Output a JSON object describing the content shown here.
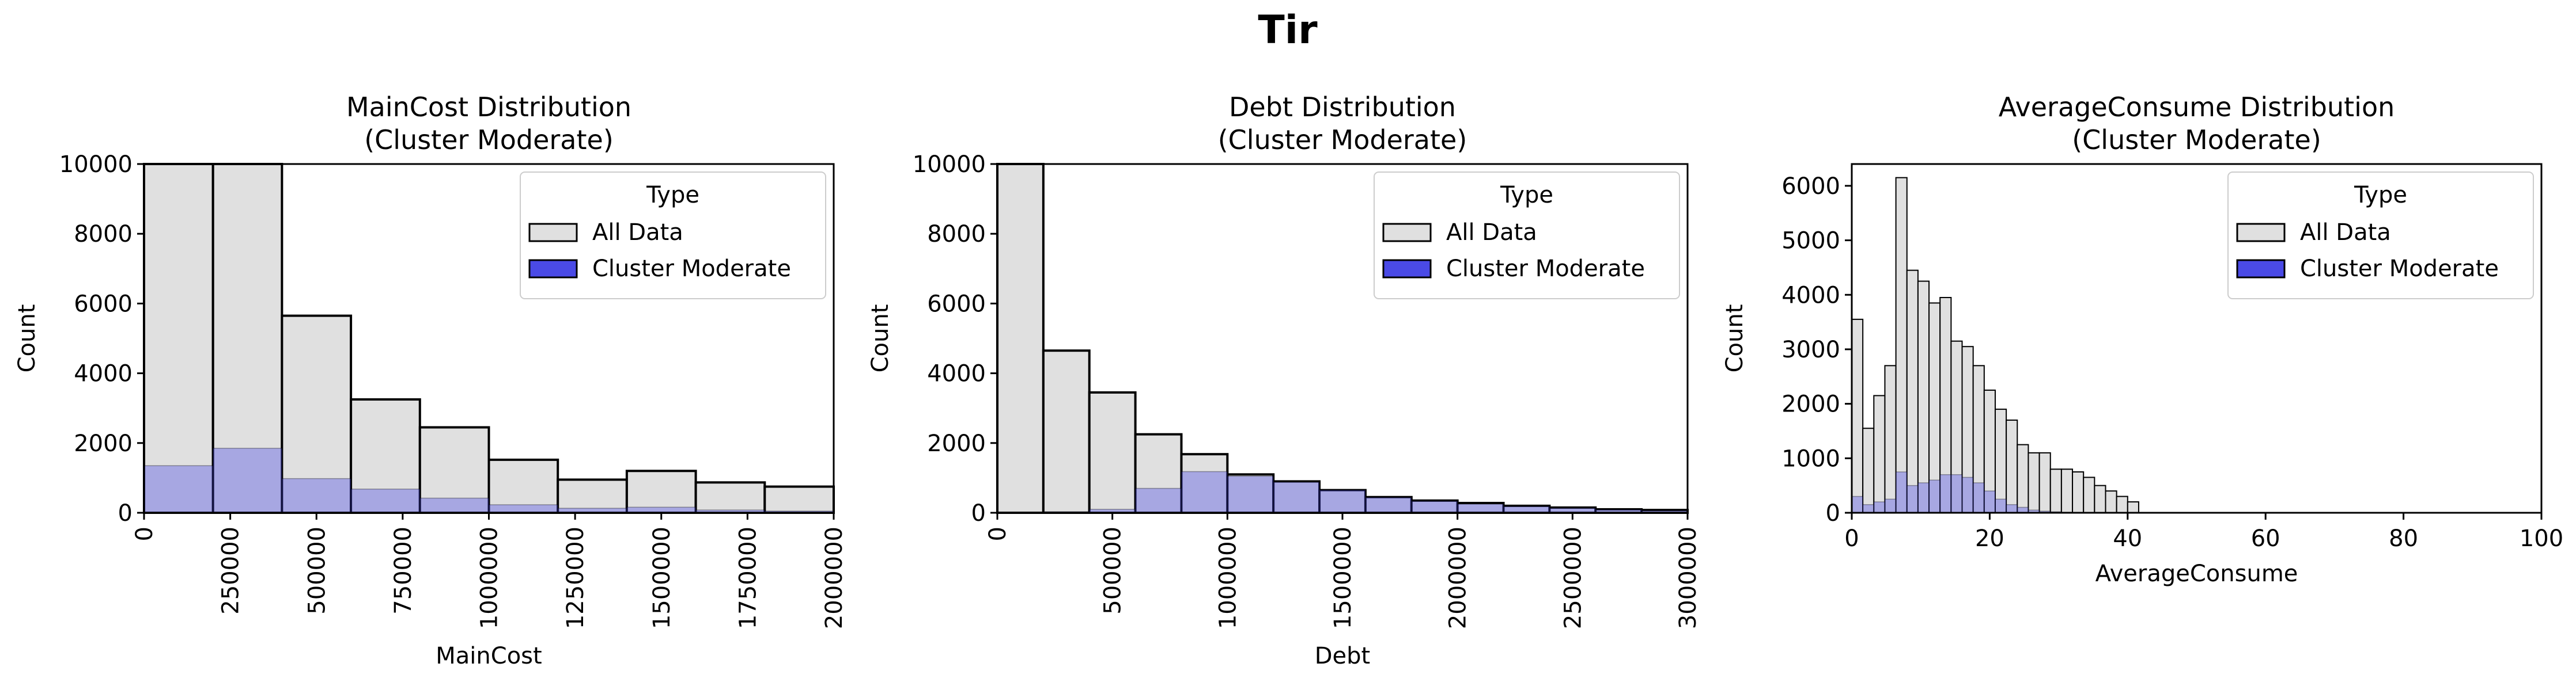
{
  "figure": {
    "suptitle": "Tir"
  },
  "legend": {
    "title": "Type",
    "all_label": "All Data",
    "cluster_label": "Cluster Moderate",
    "all_color": "#e0e0e0",
    "cluster_color": "#4a4ae6"
  },
  "chart_data": [
    {
      "type": "bar",
      "title_line1": "MainCost Distribution",
      "title_line2": "(Cluster Moderate)",
      "xlabel": "MainCost",
      "ylabel": "Count",
      "xlim": [
        0,
        2000000
      ],
      "ylim": [
        0,
        10000
      ],
      "xticks": [
        0,
        250000,
        500000,
        750000,
        1000000,
        1250000,
        1500000,
        1750000,
        2000000
      ],
      "xtick_labels": [
        "0",
        "250000",
        "500000",
        "750000",
        "1000000",
        "1250000",
        "1500000",
        "1750000",
        "2000000"
      ],
      "xtick_rotation": 90,
      "yticks": [
        0,
        2000,
        4000,
        6000,
        8000,
        10000
      ],
      "ytick_labels": [
        "0",
        "2000",
        "4000",
        "6000",
        "8000",
        "10000"
      ],
      "legend_position": "top-right",
      "bin_width": 200000,
      "series": [
        {
          "name": "All Data",
          "bin_start": [
            0,
            200000,
            400000,
            600000,
            800000,
            1000000,
            1200000,
            1400000,
            1600000,
            1800000
          ],
          "values": [
            10000,
            10000,
            5650,
            3250,
            2450,
            1520,
            950,
            1200,
            870,
            750
          ]
        },
        {
          "name": "Cluster Moderate",
          "bin_start": [
            0,
            200000,
            400000,
            600000,
            800000,
            1000000,
            1200000,
            1400000,
            1600000,
            1800000
          ],
          "values": [
            1350,
            1850,
            980,
            680,
            420,
            230,
            130,
            160,
            80,
            50
          ]
        }
      ]
    },
    {
      "type": "bar",
      "title_line1": "Debt Distribution",
      "title_line2": "(Cluster Moderate)",
      "xlabel": "Debt",
      "ylabel": "Count",
      "xlim": [
        0,
        3000000
      ],
      "ylim": [
        0,
        10000
      ],
      "xticks": [
        0,
        500000,
        1000000,
        1500000,
        2000000,
        2500000,
        3000000
      ],
      "xtick_labels": [
        "0",
        "500000",
        "1000000",
        "1500000",
        "2000000",
        "2500000",
        "3000000"
      ],
      "xtick_rotation": 90,
      "yticks": [
        0,
        2000,
        4000,
        6000,
        8000,
        10000
      ],
      "ytick_labels": [
        "0",
        "2000",
        "4000",
        "6000",
        "8000",
        "10000"
      ],
      "legend_position": "top-right",
      "bin_width": 200000,
      "series": [
        {
          "name": "All Data",
          "bin_start": [
            0,
            200000,
            400000,
            600000,
            800000,
            1000000,
            1200000,
            1400000,
            1600000,
            1800000,
            2000000,
            2200000,
            2400000,
            2600000,
            2800000
          ],
          "values": [
            10000,
            4650,
            3450,
            2250,
            1680,
            1100,
            900,
            650,
            450,
            350,
            280,
            200,
            150,
            100,
            80
          ]
        },
        {
          "name": "Cluster Moderate",
          "bin_start": [
            0,
            200000,
            400000,
            600000,
            800000,
            1000000,
            1200000,
            1400000,
            1600000,
            1800000,
            2000000,
            2200000,
            2400000,
            2600000,
            2800000
          ],
          "values": [
            0,
            30,
            100,
            700,
            1180,
            1050,
            880,
            650,
            440,
            330,
            250,
            180,
            130,
            90,
            60
          ]
        }
      ]
    },
    {
      "type": "bar",
      "title_line1": "AverageConsume Distribution",
      "title_line2": "(Cluster Moderate)",
      "xlabel": "AverageConsume",
      "ylabel": "Count",
      "xlim": [
        0,
        100
      ],
      "ylim": [
        0,
        6400
      ],
      "xticks": [
        0,
        20,
        40,
        60,
        80,
        100
      ],
      "xtick_labels": [
        "0",
        "20",
        "40",
        "60",
        "80",
        "100"
      ],
      "xtick_rotation": 0,
      "yticks": [
        0,
        1000,
        2000,
        3000,
        4000,
        5000,
        6000
      ],
      "ytick_labels": [
        "0",
        "1000",
        "2000",
        "3000",
        "4000",
        "5000",
        "6000"
      ],
      "legend_position": "top-right",
      "bin_width": 1.6,
      "series": [
        {
          "name": "All Data",
          "bin_start": [
            0,
            1.6,
            3.2,
            4.8,
            6.4,
            8.0,
            9.6,
            11.2,
            12.8,
            14.4,
            16.0,
            17.6,
            19.2,
            20.8,
            22.4,
            24.0,
            25.6,
            27.2,
            28.8,
            30.4,
            32.0,
            33.6,
            35.2,
            36.8,
            38.4,
            40.0
          ],
          "values": [
            3550,
            1550,
            2150,
            2700,
            6150,
            4450,
            4250,
            3850,
            3950,
            3150,
            3050,
            2700,
            2250,
            1900,
            1700,
            1250,
            1100,
            1100,
            800,
            800,
            750,
            650,
            500,
            400,
            300,
            200
          ]
        },
        {
          "name": "Cluster Moderate",
          "bin_start": [
            0,
            1.6,
            3.2,
            4.8,
            6.4,
            8.0,
            9.6,
            11.2,
            12.8,
            14.4,
            16.0,
            17.6,
            19.2,
            20.8,
            22.4,
            24.0,
            25.6,
            27.2,
            28.8,
            30.4,
            32.0,
            33.6,
            35.2,
            36.8,
            38.4,
            40.0
          ],
          "values": [
            300,
            150,
            200,
            250,
            750,
            500,
            550,
            600,
            700,
            700,
            650,
            550,
            400,
            250,
            150,
            100,
            50,
            30,
            20,
            10,
            5,
            0,
            0,
            0,
            0,
            0
          ]
        }
      ]
    }
  ]
}
